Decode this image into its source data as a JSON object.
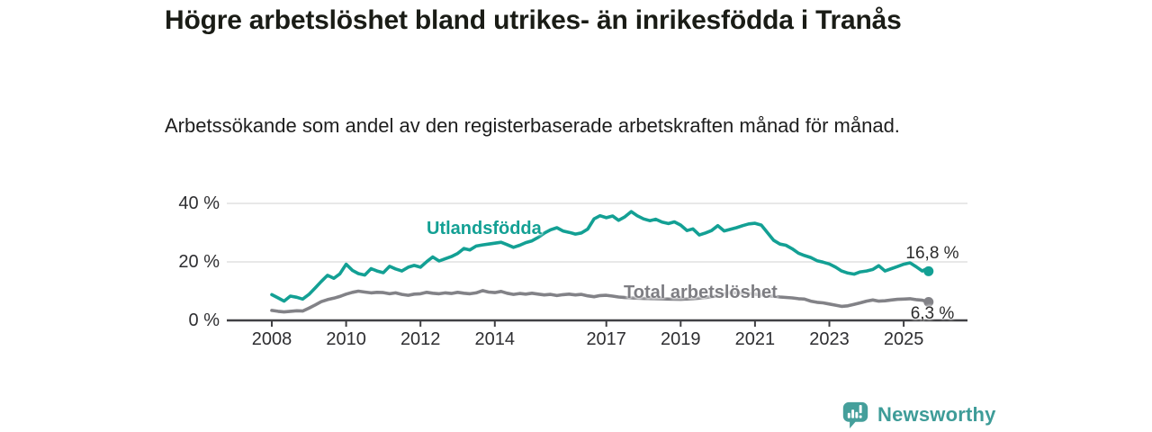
{
  "header": {
    "title": "Högre arbetslöshet bland utrikes- än inrikesfödda i Tranås",
    "subtitle": "Arbetssökande som andel av den registerbaserade arbetskraften månad för månad."
  },
  "chart_data": {
    "type": "line",
    "title": "Högre arbetslöshet bland utrikes- än inrikesfödda i Tranås",
    "subtitle": "Arbetssökande som andel av den registerbaserade arbetskraften månad för månad.",
    "unit": "%",
    "grid": "horizontal-only",
    "legend": "inline-labels",
    "x_axis": {
      "range": [
        2007.8,
        2026.1
      ],
      "ticks": [
        2008,
        2010,
        2012,
        2014,
        2017,
        2019,
        2021,
        2023,
        2025
      ],
      "tick_labels": [
        "2008",
        "2010",
        "2012",
        "2014",
        "2017",
        "2019",
        "2021",
        "2023",
        "2025"
      ]
    },
    "y_axis": {
      "range": [
        0,
        43
      ],
      "ticks": [
        0,
        20,
        40
      ],
      "tick_labels": [
        "0 %",
        "20 %",
        "40 %"
      ]
    },
    "series": [
      {
        "name": "Utlandsfödda",
        "color": "#13a094",
        "end_value": 16.8,
        "end_label": "16,8 %",
        "points": [
          [
            2008.0,
            8.8
          ],
          [
            2008.17,
            7.7
          ],
          [
            2008.33,
            6.6
          ],
          [
            2008.5,
            8.3
          ],
          [
            2008.67,
            7.9
          ],
          [
            2008.83,
            7.3
          ],
          [
            2009.0,
            8.9
          ],
          [
            2009.17,
            11.1
          ],
          [
            2009.33,
            13.3
          ],
          [
            2009.5,
            15.4
          ],
          [
            2009.67,
            14.4
          ],
          [
            2009.83,
            15.9
          ],
          [
            2010.0,
            19.2
          ],
          [
            2010.17,
            17.1
          ],
          [
            2010.33,
            16.0
          ],
          [
            2010.5,
            15.5
          ],
          [
            2010.67,
            17.7
          ],
          [
            2010.83,
            16.9
          ],
          [
            2011.0,
            16.3
          ],
          [
            2011.17,
            18.5
          ],
          [
            2011.33,
            17.6
          ],
          [
            2011.5,
            16.9
          ],
          [
            2011.67,
            18.2
          ],
          [
            2011.83,
            18.8
          ],
          [
            2012.0,
            18.2
          ],
          [
            2012.17,
            20.1
          ],
          [
            2012.33,
            21.7
          ],
          [
            2012.5,
            20.3
          ],
          [
            2012.67,
            21.1
          ],
          [
            2012.83,
            21.8
          ],
          [
            2013.0,
            22.9
          ],
          [
            2013.17,
            24.6
          ],
          [
            2013.33,
            24.1
          ],
          [
            2013.5,
            25.4
          ],
          [
            2013.67,
            25.8
          ],
          [
            2013.83,
            26.1
          ],
          [
            2014.0,
            26.4
          ],
          [
            2014.17,
            26.7
          ],
          [
            2014.33,
            25.9
          ],
          [
            2014.5,
            25.0
          ],
          [
            2014.67,
            25.7
          ],
          [
            2014.83,
            26.6
          ],
          [
            2015.0,
            27.2
          ],
          [
            2015.17,
            28.4
          ],
          [
            2015.33,
            29.8
          ],
          [
            2015.5,
            31.0
          ],
          [
            2015.67,
            31.7
          ],
          [
            2015.83,
            30.6
          ],
          [
            2016.0,
            30.1
          ],
          [
            2016.17,
            29.5
          ],
          [
            2016.33,
            29.9
          ],
          [
            2016.5,
            31.2
          ],
          [
            2016.67,
            34.7
          ],
          [
            2016.83,
            35.8
          ],
          [
            2017.0,
            35.1
          ],
          [
            2017.17,
            35.7
          ],
          [
            2017.33,
            34.2
          ],
          [
            2017.5,
            35.4
          ],
          [
            2017.67,
            37.2
          ],
          [
            2017.83,
            35.8
          ],
          [
            2018.0,
            34.7
          ],
          [
            2018.17,
            34.1
          ],
          [
            2018.33,
            34.6
          ],
          [
            2018.5,
            33.6
          ],
          [
            2018.67,
            33.1
          ],
          [
            2018.83,
            33.7
          ],
          [
            2019.0,
            32.6
          ],
          [
            2019.17,
            30.7
          ],
          [
            2019.33,
            31.3
          ],
          [
            2019.5,
            29.2
          ],
          [
            2019.67,
            29.9
          ],
          [
            2019.83,
            30.7
          ],
          [
            2020.0,
            32.4
          ],
          [
            2020.17,
            30.6
          ],
          [
            2020.33,
            31.1
          ],
          [
            2020.5,
            31.7
          ],
          [
            2020.67,
            32.4
          ],
          [
            2020.83,
            33.0
          ],
          [
            2021.0,
            33.2
          ],
          [
            2021.17,
            32.6
          ],
          [
            2021.33,
            30.1
          ],
          [
            2021.5,
            27.4
          ],
          [
            2021.67,
            26.1
          ],
          [
            2021.83,
            25.7
          ],
          [
            2022.0,
            24.5
          ],
          [
            2022.17,
            23.0
          ],
          [
            2022.33,
            22.2
          ],
          [
            2022.5,
            21.5
          ],
          [
            2022.67,
            20.4
          ],
          [
            2022.83,
            19.9
          ],
          [
            2023.0,
            19.3
          ],
          [
            2023.17,
            18.2
          ],
          [
            2023.33,
            16.9
          ],
          [
            2023.5,
            16.2
          ],
          [
            2023.67,
            15.8
          ],
          [
            2023.83,
            16.6
          ],
          [
            2024.0,
            16.9
          ],
          [
            2024.17,
            17.4
          ],
          [
            2024.33,
            18.7
          ],
          [
            2024.5,
            16.9
          ],
          [
            2024.67,
            17.7
          ],
          [
            2024.83,
            18.4
          ],
          [
            2025.0,
            19.2
          ],
          [
            2025.17,
            19.7
          ],
          [
            2025.33,
            18.4
          ],
          [
            2025.5,
            16.9
          ],
          [
            2025.58,
            17.4
          ],
          [
            2025.67,
            16.8
          ]
        ]
      },
      {
        "name": "Total arbetslöshet",
        "color": "#828287",
        "end_value": 6.3,
        "end_label": "6,3 %",
        "points": [
          [
            2008.0,
            3.4
          ],
          [
            2008.17,
            3.1
          ],
          [
            2008.33,
            2.9
          ],
          [
            2008.5,
            3.1
          ],
          [
            2008.67,
            3.3
          ],
          [
            2008.83,
            3.2
          ],
          [
            2009.0,
            4.2
          ],
          [
            2009.17,
            5.3
          ],
          [
            2009.33,
            6.4
          ],
          [
            2009.5,
            7.1
          ],
          [
            2009.67,
            7.6
          ],
          [
            2009.83,
            8.2
          ],
          [
            2010.0,
            9.0
          ],
          [
            2010.17,
            9.6
          ],
          [
            2010.33,
            10.0
          ],
          [
            2010.5,
            9.7
          ],
          [
            2010.67,
            9.4
          ],
          [
            2010.83,
            9.6
          ],
          [
            2011.0,
            9.5
          ],
          [
            2011.17,
            9.1
          ],
          [
            2011.33,
            9.4
          ],
          [
            2011.5,
            8.9
          ],
          [
            2011.67,
            8.6
          ],
          [
            2011.83,
            9.0
          ],
          [
            2012.0,
            9.1
          ],
          [
            2012.17,
            9.6
          ],
          [
            2012.33,
            9.3
          ],
          [
            2012.5,
            9.1
          ],
          [
            2012.67,
            9.4
          ],
          [
            2012.83,
            9.2
          ],
          [
            2013.0,
            9.6
          ],
          [
            2013.17,
            9.3
          ],
          [
            2013.33,
            9.1
          ],
          [
            2013.5,
            9.4
          ],
          [
            2013.67,
            10.2
          ],
          [
            2013.83,
            9.7
          ],
          [
            2014.0,
            9.5
          ],
          [
            2014.17,
            9.9
          ],
          [
            2014.33,
            9.3
          ],
          [
            2014.5,
            8.9
          ],
          [
            2014.67,
            9.2
          ],
          [
            2014.83,
            9.0
          ],
          [
            2015.0,
            9.3
          ],
          [
            2015.17,
            9.0
          ],
          [
            2015.33,
            8.7
          ],
          [
            2015.5,
            8.9
          ],
          [
            2015.67,
            8.5
          ],
          [
            2015.83,
            8.8
          ],
          [
            2016.0,
            9.0
          ],
          [
            2016.17,
            8.7
          ],
          [
            2016.33,
            8.9
          ],
          [
            2016.5,
            8.4
          ],
          [
            2016.67,
            8.1
          ],
          [
            2016.83,
            8.5
          ],
          [
            2017.0,
            8.6
          ],
          [
            2017.17,
            8.3
          ],
          [
            2017.33,
            8.0
          ],
          [
            2017.5,
            7.8
          ],
          [
            2017.67,
            7.7
          ],
          [
            2017.83,
            7.6
          ],
          [
            2018.0,
            7.5
          ],
          [
            2018.33,
            7.4
          ],
          [
            2018.67,
            7.3
          ],
          [
            2019.0,
            7.2
          ],
          [
            2019.33,
            7.4
          ],
          [
            2019.67,
            7.8
          ],
          [
            2020.0,
            8.4
          ],
          [
            2020.33,
            9.5
          ],
          [
            2020.67,
            9.3
          ],
          [
            2021.0,
            9.0
          ],
          [
            2021.33,
            8.5
          ],
          [
            2021.67,
            8.0
          ],
          [
            2022.0,
            7.7
          ],
          [
            2022.17,
            7.4
          ],
          [
            2022.33,
            7.3
          ],
          [
            2022.5,
            6.6
          ],
          [
            2022.67,
            6.2
          ],
          [
            2022.83,
            6.0
          ],
          [
            2023.0,
            5.6
          ],
          [
            2023.17,
            5.2
          ],
          [
            2023.33,
            4.8
          ],
          [
            2023.5,
            5.0
          ],
          [
            2023.67,
            5.5
          ],
          [
            2023.83,
            6.0
          ],
          [
            2024.0,
            6.6
          ],
          [
            2024.17,
            7.0
          ],
          [
            2024.33,
            6.6
          ],
          [
            2024.5,
            6.7
          ],
          [
            2024.67,
            7.0
          ],
          [
            2024.83,
            7.2
          ],
          [
            2025.0,
            7.3
          ],
          [
            2025.17,
            7.4
          ],
          [
            2025.33,
            7.1
          ],
          [
            2025.5,
            6.9
          ],
          [
            2025.67,
            6.3
          ]
        ]
      }
    ]
  },
  "footer": {
    "brand": "Newsworthy",
    "brand_color": "#3e9c98",
    "logo_icon": "bar-chart-speech-bubble-icon"
  }
}
